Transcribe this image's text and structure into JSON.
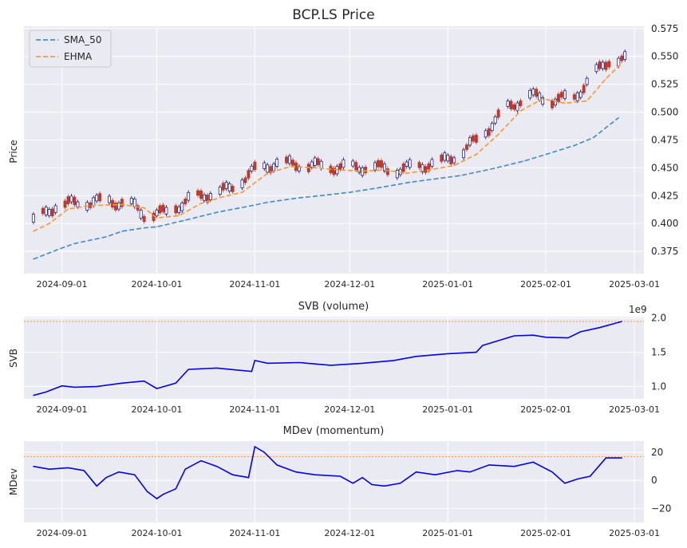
{
  "chart_data": [
    {
      "type": "candlestick",
      "title": "BCP.LS Price",
      "ylabel": "Price",
      "ylim": [
        0.355,
        0.577
      ],
      "yticks": [
        "0.375",
        "0.400",
        "0.425",
        "0.450",
        "0.475",
        "0.500",
        "0.525",
        "0.550",
        "0.575"
      ],
      "xlim": [
        "2024-08-20",
        "2025-03-04"
      ],
      "xticks": [
        "2024-09-01",
        "2024-10-01",
        "2024-11-01",
        "2024-12-01",
        "2025-01-01",
        "2025-02-01",
        "2025-03-01"
      ],
      "grid": true,
      "legend_position": "top-left",
      "colors": {
        "up": "#0b0b7a",
        "down": "#c0392b",
        "sma": "#4a8ec4",
        "ehma": "#f59a3c"
      },
      "series": [
        {
          "name": "SMA_50",
          "style": "dashed",
          "color": "#4a8ec4",
          "x": [
            "2024-08-23",
            "2024-09-01",
            "2024-09-05",
            "2024-09-15",
            "2024-09-20",
            "2024-09-27",
            "2024-10-01",
            "2024-10-10",
            "2024-10-20",
            "2024-10-31",
            "2024-11-05",
            "2024-11-15",
            "2024-11-25",
            "2024-12-01",
            "2024-12-10",
            "2024-12-20",
            "2024-12-28",
            "2025-01-05",
            "2025-01-15",
            "2025-01-25",
            "2025-02-01",
            "2025-02-10",
            "2025-02-16",
            "2025-02-24"
          ],
          "values": [
            0.368,
            0.378,
            0.382,
            0.388,
            0.393,
            0.396,
            0.397,
            0.403,
            0.41,
            0.416,
            0.419,
            0.423,
            0.426,
            0.428,
            0.432,
            0.437,
            0.44,
            0.443,
            0.449,
            0.456,
            0.462,
            0.47,
            0.477,
            0.495
          ]
        },
        {
          "name": "EHMA",
          "style": "dashed",
          "color": "#f59a3c",
          "x": [
            "2024-08-23",
            "2024-08-28",
            "2024-09-03",
            "2024-09-10",
            "2024-09-20",
            "2024-09-27",
            "2024-10-01",
            "2024-10-08",
            "2024-10-15",
            "2024-10-22",
            "2024-10-28",
            "2024-11-05",
            "2024-11-12",
            "2024-11-20",
            "2024-11-28",
            "2024-12-05",
            "2024-12-12",
            "2024-12-19",
            "2024-12-26",
            "2025-01-03",
            "2025-01-10",
            "2025-01-17",
            "2025-01-24",
            "2025-01-31",
            "2025-02-07",
            "2025-02-14",
            "2025-02-20",
            "2025-02-25"
          ],
          "values": [
            0.393,
            0.4,
            0.413,
            0.416,
            0.417,
            0.414,
            0.405,
            0.407,
            0.418,
            0.424,
            0.428,
            0.445,
            0.451,
            0.45,
            0.448,
            0.447,
            0.448,
            0.445,
            0.448,
            0.452,
            0.462,
            0.48,
            0.501,
            0.512,
            0.508,
            0.51,
            0.53,
            0.544
          ]
        }
      ]
    },
    {
      "type": "line",
      "title": "SVB (volume)",
      "ylabel": "SVB",
      "scale_label": "1e9",
      "ylim": [
        0.82,
        2.02
      ],
      "yticks": [
        "1.0",
        "1.5",
        "2.0"
      ],
      "xticks": [
        "2024-09-01",
        "2024-10-01",
        "2024-11-01",
        "2024-12-01",
        "2025-01-01",
        "2025-02-01",
        "2025-03-01"
      ],
      "reference_line": 1.95,
      "series": [
        {
          "name": "SVB",
          "color": "#0000ee",
          "x": [
            "2024-08-23",
            "2024-08-27",
            "2024-09-01",
            "2024-09-05",
            "2024-09-12",
            "2024-09-20",
            "2024-09-27",
            "2024-10-01",
            "2024-10-07",
            "2024-10-11",
            "2024-10-20",
            "2024-10-31",
            "2024-11-01",
            "2024-11-05",
            "2024-11-15",
            "2024-11-25",
            "2024-12-05",
            "2024-12-15",
            "2024-12-22",
            "2025-01-01",
            "2025-01-10",
            "2025-01-12",
            "2025-01-22",
            "2025-01-28",
            "2025-02-01",
            "2025-02-08",
            "2025-02-12",
            "2025-02-18",
            "2025-02-25"
          ],
          "values": [
            0.87,
            0.92,
            1.01,
            0.99,
            1.0,
            1.05,
            1.08,
            0.97,
            1.05,
            1.25,
            1.27,
            1.22,
            1.38,
            1.34,
            1.35,
            1.31,
            1.34,
            1.38,
            1.44,
            1.48,
            1.5,
            1.6,
            1.74,
            1.75,
            1.72,
            1.71,
            1.8,
            1.86,
            1.95
          ]
        }
      ]
    },
    {
      "type": "line",
      "title": "MDev (momentum)",
      "ylabel": "MDev",
      "ylim": [
        -30,
        28
      ],
      "yticks": [
        "−20",
        "0",
        "20"
      ],
      "xticks": [
        "2024-09-01",
        "2024-10-01",
        "2024-11-01",
        "2024-12-01",
        "2025-01-01",
        "2025-02-01",
        "2025-03-01"
      ],
      "reference_line": 17,
      "series": [
        {
          "name": "MDev",
          "color": "#0000ee",
          "x": [
            "2024-08-23",
            "2024-08-28",
            "2024-09-03",
            "2024-09-08",
            "2024-09-12",
            "2024-09-15",
            "2024-09-19",
            "2024-09-24",
            "2024-09-28",
            "2024-10-01",
            "2024-10-03",
            "2024-10-07",
            "2024-10-10",
            "2024-10-15",
            "2024-10-20",
            "2024-10-25",
            "2024-10-30",
            "2024-11-01",
            "2024-11-04",
            "2024-11-08",
            "2024-11-14",
            "2024-11-20",
            "2024-11-28",
            "2024-12-02",
            "2024-12-05",
            "2024-12-08",
            "2024-12-12",
            "2024-12-17",
            "2024-12-22",
            "2024-12-28",
            "2025-01-04",
            "2025-01-08",
            "2025-01-14",
            "2025-01-22",
            "2025-01-28",
            "2025-02-03",
            "2025-02-07",
            "2025-02-11",
            "2025-02-15",
            "2025-02-20",
            "2025-02-25"
          ],
          "values": [
            10,
            8,
            9,
            7,
            -4,
            2,
            6,
            4,
            -8,
            -13,
            -10,
            -6,
            8,
            14,
            10,
            4,
            2,
            24,
            20,
            11,
            6,
            4,
            3,
            -2,
            2,
            -3,
            -4,
            -2,
            6,
            4,
            7,
            6,
            11,
            10,
            13,
            6,
            -2,
            1,
            3,
            16,
            16
          ]
        }
      ]
    }
  ]
}
